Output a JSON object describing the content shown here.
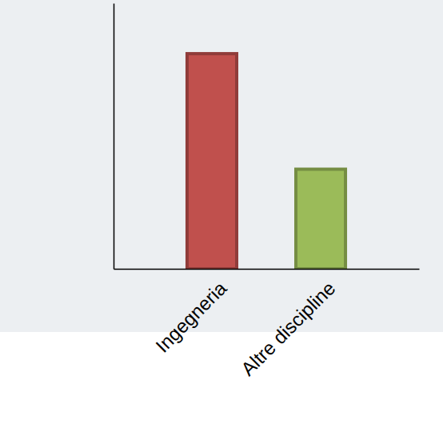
{
  "chart_data": {
    "type": "bar",
    "categories": [
      "Ingegneria",
      "Altre discipline"
    ],
    "values": [
      81,
      37.5
    ],
    "colors": [
      "#c0504d",
      "#9bbb59"
    ],
    "ylim": [
      0,
      100
    ],
    "yticks": [],
    "tick_labels": "x",
    "grid": false
  }
}
